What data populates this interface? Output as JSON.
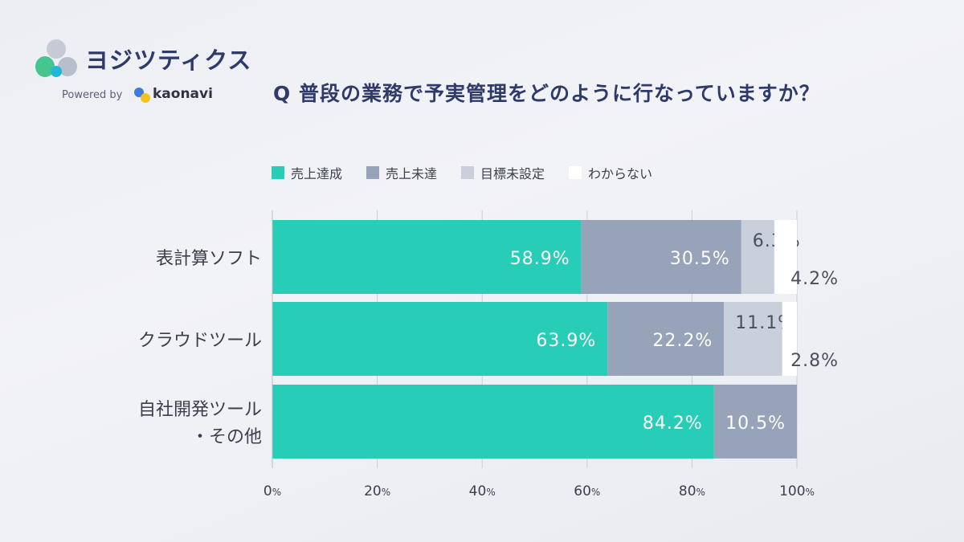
{
  "brand": {
    "name": "ヨジツティクス",
    "powered_by": "Powered by",
    "partner": "kaonavi"
  },
  "chart_data": {
    "type": "bar",
    "orientation": "horizontal",
    "stacked": true,
    "title": "Q 普段の業務で予実管理をどのように行なっていますか？",
    "categories": [
      "表計算ソフト",
      "クラウドツール",
      "自社開発ツール・その他"
    ],
    "category_lines": [
      [
        "表計算ソフト"
      ],
      [
        "クラウドツール"
      ],
      [
        "自社開発ツール",
        "・その他"
      ]
    ],
    "series": [
      {
        "name": "売上達成",
        "color": "#28cdb8",
        "values": [
          58.9,
          63.9,
          84.2
        ]
      },
      {
        "name": "売上未達",
        "color": "#97a3b9",
        "values": [
          30.5,
          22.2,
          10.5
        ]
      },
      {
        "name": "目標未設定",
        "color": "#c9d0dc",
        "values": [
          6.3,
          11.1,
          null
        ]
      },
      {
        "name": "わからない",
        "color": "#ffffff",
        "values": [
          4.2,
          2.8,
          null
        ]
      }
    ],
    "xlim": [
      0,
      100
    ],
    "xticks": [
      "0",
      "20",
      "40",
      "60",
      "80",
      "100"
    ],
    "tick_suffix": "%",
    "legend_position": "top"
  }
}
